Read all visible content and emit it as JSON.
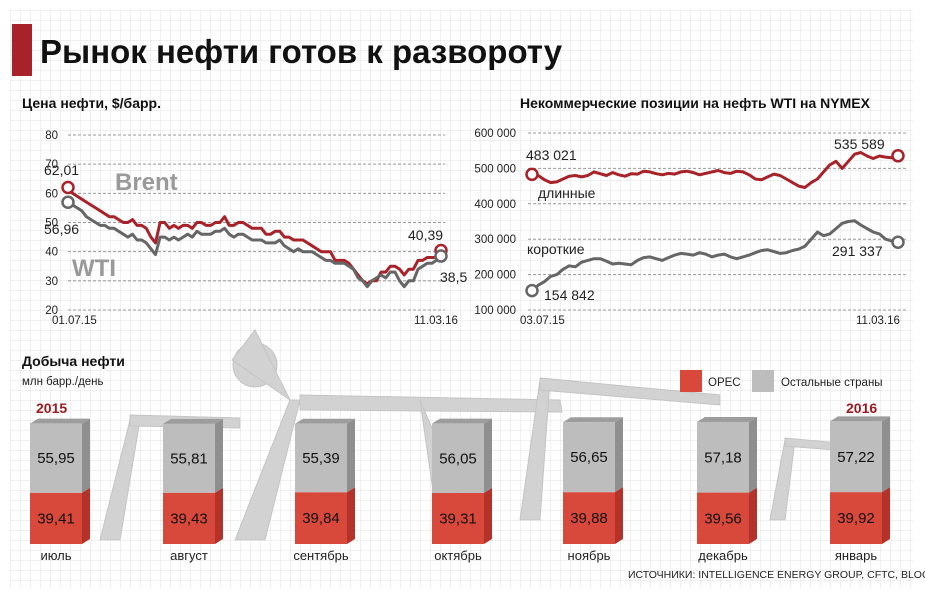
{
  "title": "Рынок нефти готов к развороту",
  "colors": {
    "red": "#a8222a",
    "dark_gray": "#666666",
    "light_gray": "#bdbdbd",
    "opec_red": "#d9493b",
    "grid": "#d5d5d5"
  },
  "source": "ИСТОЧНИКИ: INTELLIGENCE ENERGY GROUP, CFTC, BLOOMBERG",
  "chart_data": [
    {
      "type": "line",
      "title": "Цена нефти, $/барр.",
      "ylim": [
        20,
        80
      ],
      "yticks": [
        "80",
        "70",
        "60",
        "50",
        "40",
        "30",
        "20"
      ],
      "x_start_label": "01.07.15",
      "x_end_label": "11.03.16",
      "grid": true,
      "series": [
        {
          "name": "Brent",
          "color": "#a8222a",
          "start_label": "62,01",
          "end_label": "40,39",
          "values": [
            62.01,
            60,
            59,
            58,
            57,
            56,
            55,
            54,
            53,
            52,
            52,
            51,
            50,
            50,
            51,
            49,
            49,
            48,
            45,
            43,
            50,
            50,
            48,
            49,
            48,
            49,
            49,
            48,
            50,
            50,
            49,
            49,
            50,
            50,
            52,
            49,
            49,
            50,
            50,
            49,
            48,
            48,
            48,
            46,
            46,
            47,
            47,
            45,
            45,
            44,
            44,
            44,
            43,
            42,
            41,
            40,
            40,
            40,
            37,
            37,
            37,
            36,
            34,
            32,
            30,
            29,
            30,
            30,
            33,
            33,
            35,
            35,
            34,
            32,
            34,
            34,
            37,
            37,
            38,
            38,
            38,
            40.39
          ]
        },
        {
          "name": "WTI",
          "color": "#666666",
          "start_label": "56,96",
          "end_label": "38,5",
          "values": [
            56.96,
            56,
            55,
            54,
            52,
            51,
            50,
            49,
            49,
            48,
            48,
            47,
            46,
            45,
            46,
            44,
            44,
            43,
            41,
            39,
            45,
            45,
            44,
            45,
            44,
            45,
            46,
            45,
            47,
            46,
            46,
            46,
            47,
            47,
            48,
            46,
            45,
            46,
            46,
            45,
            44,
            44,
            44,
            43,
            43,
            43,
            44,
            42,
            41,
            40,
            41,
            40,
            40,
            40,
            39,
            38,
            37,
            37,
            36,
            36,
            36,
            35,
            34,
            31,
            30,
            28,
            30,
            31,
            32,
            31,
            33,
            33,
            30,
            28,
            30,
            30,
            34,
            35,
            36,
            36,
            37,
            38.5
          ]
        }
      ]
    },
    {
      "type": "line",
      "title": "Некоммерческие позиции на нефть WTI на NYMEX",
      "ylim": [
        100000,
        600000
      ],
      "yticks": [
        "600 000",
        "500 000",
        "400 000",
        "300 000",
        "200 000",
        "100 000"
      ],
      "x_start_label": "03.07.15",
      "x_end_label": "11.03.16",
      "grid": true,
      "series": [
        {
          "name": "длинные",
          "color": "#a8222a",
          "start_label": "483 021",
          "end_label": "535 589",
          "values": [
            483021,
            480000,
            468000,
            460000,
            462000,
            470000,
            478000,
            480000,
            476000,
            480000,
            490000,
            485000,
            480000,
            488000,
            482000,
            478000,
            485000,
            484000,
            492000,
            490000,
            485000,
            482000,
            486000,
            484000,
            490000,
            492000,
            488000,
            482000,
            486000,
            490000,
            494000,
            488000,
            486000,
            492000,
            490000,
            482000,
            470000,
            468000,
            476000,
            484000,
            480000,
            470000,
            460000,
            450000,
            446000,
            460000,
            470000,
            490000,
            510000,
            520000,
            500000,
            520000,
            540000,
            545000,
            535000,
            528000,
            535000,
            532000,
            530000,
            535589
          ]
        },
        {
          "name": "короткие",
          "color": "#666666",
          "start_label": "154 842",
          "end_label": "291 337",
          "values": [
            154842,
            170000,
            180000,
            195000,
            200000,
            215000,
            225000,
            222000,
            235000,
            240000,
            245000,
            245000,
            238000,
            230000,
            232000,
            230000,
            228000,
            240000,
            248000,
            250000,
            245000,
            240000,
            248000,
            255000,
            260000,
            258000,
            255000,
            262000,
            258000,
            250000,
            255000,
            258000,
            250000,
            245000,
            250000,
            255000,
            262000,
            268000,
            270000,
            265000,
            260000,
            262000,
            268000,
            272000,
            280000,
            300000,
            320000,
            310000,
            315000,
            330000,
            345000,
            350000,
            352000,
            340000,
            330000,
            320000,
            315000,
            300000,
            295000,
            291337
          ]
        }
      ]
    },
    {
      "type": "bar",
      "title": "Добыча нефти",
      "unit": "млн барр./день",
      "stacked": true,
      "categories": [
        "июль",
        "август",
        "сентябрь",
        "октябрь",
        "ноябрь",
        "декабрь",
        "январь"
      ],
      "year_labels": [
        "2015",
        "2016"
      ],
      "series": [
        {
          "name": "OPEC",
          "color": "#d9493b",
          "values": [
            39.41,
            39.43,
            39.84,
            39.31,
            39.88,
            39.56,
            39.92
          ],
          "labels": [
            "39,41",
            "39,43",
            "39,84",
            "39,31",
            "39,88",
            "39,56",
            "39,92"
          ]
        },
        {
          "name": "Остальные страны",
          "color": "#bdbdbd",
          "values": [
            55.95,
            55.81,
            55.39,
            56.05,
            56.65,
            57.18,
            57.22
          ],
          "labels": [
            "55,95",
            "55,81",
            "55,39",
            "56,05",
            "56,65",
            "57,18",
            "57,22"
          ]
        }
      ]
    }
  ]
}
